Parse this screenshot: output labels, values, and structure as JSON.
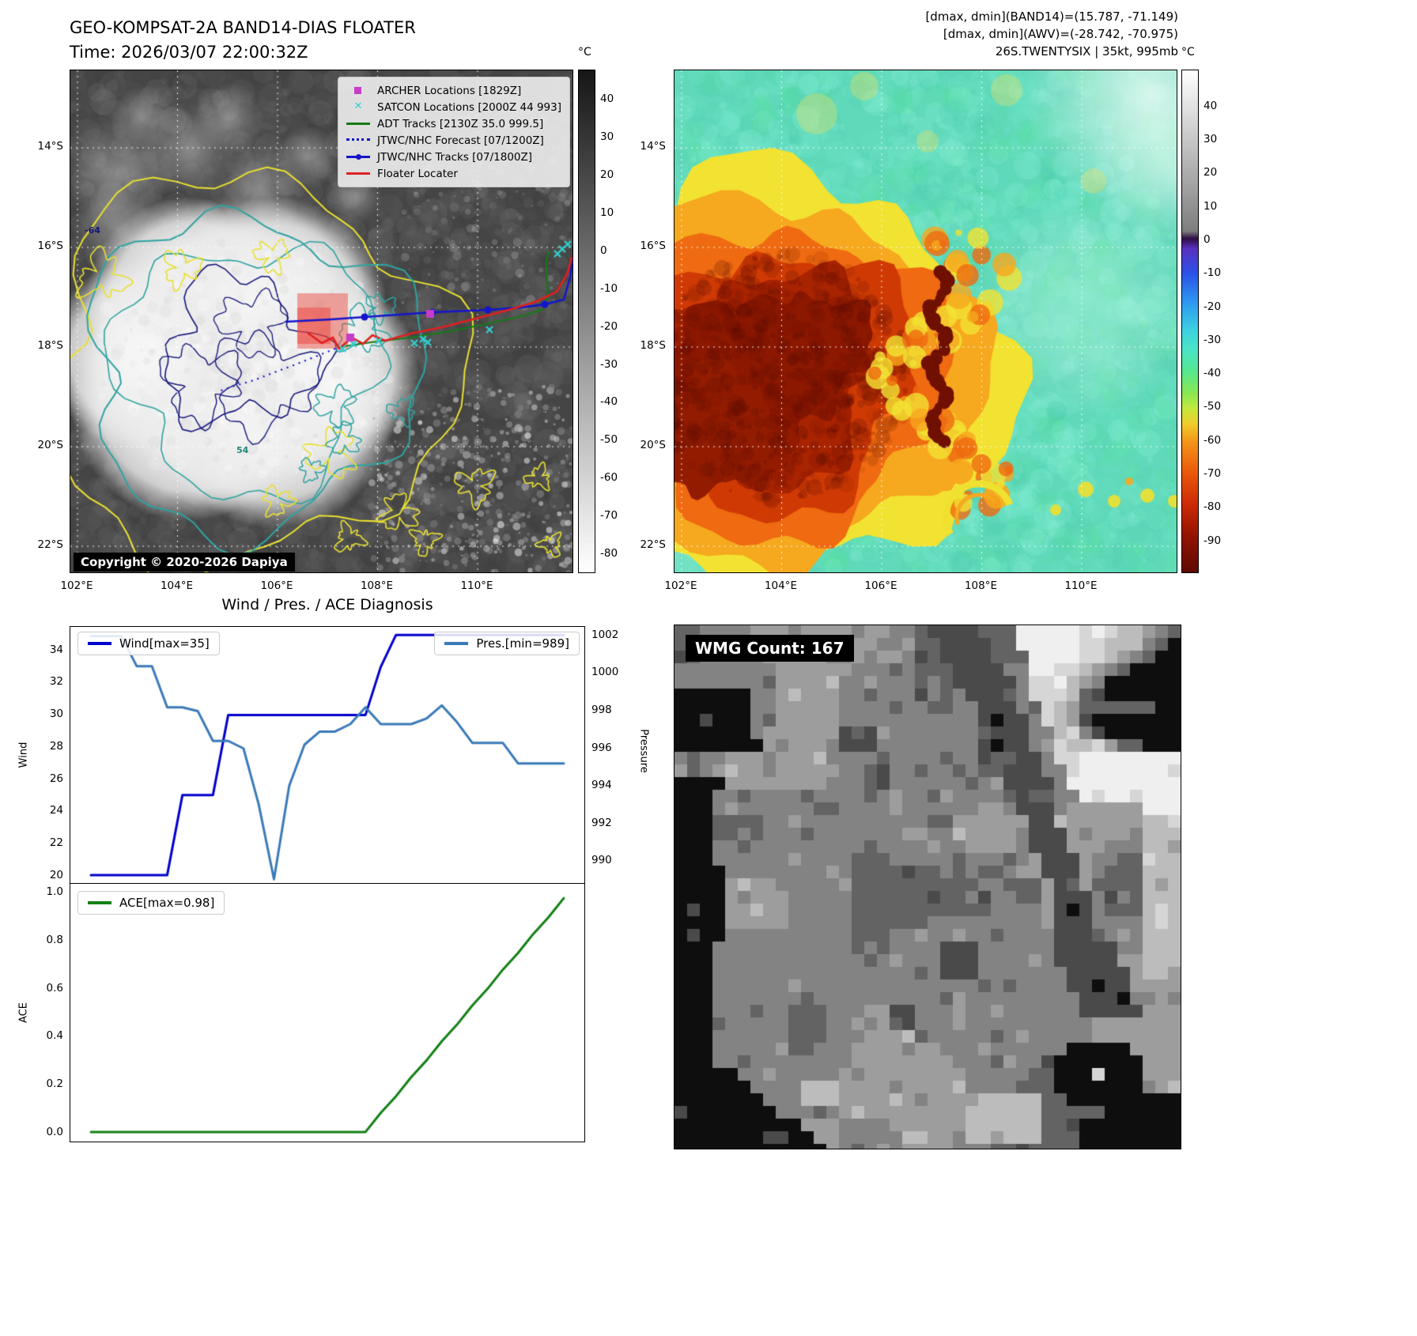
{
  "band14": {
    "title": "GEO-KOMPSAT-2A BAND14-DIAS FLOATER",
    "time_line": "Time: 2026/03/07 22:00:32Z",
    "copyright": "Copyright © 2020-2026 Dapiya",
    "colorbar_unit": "°C",
    "colorbar_ticks": [
      40,
      30,
      20,
      10,
      0,
      -10,
      -20,
      -30,
      -40,
      -50,
      -60,
      -70,
      -80
    ],
    "colorbar_stops": [
      [
        0,
        "#161616"
      ],
      [
        0.5,
        "#8a8a8a"
      ],
      [
        1,
        "#ffffff"
      ]
    ],
    "lat_ticks": [
      "14°S",
      "16°S",
      "18°S",
      "20°S",
      "22°S"
    ],
    "lon_ticks": [
      "102°E",
      "104°E",
      "106°E",
      "108°E",
      "110°E"
    ],
    "contour_labels": [
      "-64",
      "54"
    ],
    "legend": [
      {
        "label": "ARCHER Locations [1829Z]",
        "type": "square",
        "color": "#c83cc8"
      },
      {
        "label": "SATCON Locations [2000Z 44 993]",
        "type": "x",
        "color": "#35cccc"
      },
      {
        "label": "ADT Tracks [2130Z 35.0 999.5]",
        "type": "line",
        "color": "#157a15"
      },
      {
        "label": "JTWC/NHC Forecast [07/1200Z]",
        "type": "dotted",
        "color": "#1414cc"
      },
      {
        "label": "JTWC/NHC Tracks [07/1800Z]",
        "type": "line-marker",
        "color": "#1414cc"
      },
      {
        "label": "Floater Locater",
        "type": "line",
        "color": "#e02020"
      }
    ]
  },
  "awv": {
    "header_lines": [
      "[dmax, dmin](BAND14)=(15.787, -71.149)",
      "[dmax, dmin](AWV)=(-28.742, -70.975)",
      "26S.TWENTYSIX | 35kt, 995mb"
    ],
    "colorbar_unit": "°C",
    "colorbar_ticks": [
      40,
      30,
      20,
      10,
      0,
      -10,
      -20,
      -30,
      -40,
      -50,
      -60,
      -70,
      -80,
      -90
    ],
    "colorbar_stops": [
      [
        0,
        "#ffffff"
      ],
      [
        0.32,
        "#7e7e7e"
      ],
      [
        0.335,
        "#2e0e44"
      ],
      [
        0.355,
        "#5a30c0"
      ],
      [
        0.405,
        "#2a52e8"
      ],
      [
        0.465,
        "#2e9cf0"
      ],
      [
        0.52,
        "#3cd2e0"
      ],
      [
        0.555,
        "#4ae4c8"
      ],
      [
        0.6,
        "#55e88e"
      ],
      [
        0.645,
        "#8ce850"
      ],
      [
        0.675,
        "#c6e83c"
      ],
      [
        0.705,
        "#f0cc2a"
      ],
      [
        0.74,
        "#f49418"
      ],
      [
        0.8,
        "#ea5a0c"
      ],
      [
        0.865,
        "#cc2a06"
      ],
      [
        0.93,
        "#911300"
      ],
      [
        1,
        "#5e0a00"
      ]
    ],
    "lat_ticks": [
      "14°S",
      "16°S",
      "18°S",
      "20°S",
      "22°S"
    ],
    "lon_ticks": [
      "102°E",
      "104°E",
      "106°E",
      "108°E",
      "110°E"
    ]
  },
  "wmg": {
    "label": "WMG Count: 167"
  },
  "chart_data": [
    {
      "type": "line",
      "title": "Wind / Pres. / ACE Diagnosis",
      "xlabel": "",
      "x": [
        0,
        1,
        2,
        3,
        4,
        5,
        6,
        7,
        8,
        9,
        10,
        11,
        12,
        13,
        14,
        15,
        16,
        17,
        18,
        19,
        20,
        21,
        22,
        23,
        24,
        25,
        26,
        27,
        28,
        29,
        30,
        31
      ],
      "series": [
        {
          "name": "Wind[max=35]",
          "yaxis": "left",
          "color": "#0000cc",
          "values": [
            20,
            20,
            20,
            20,
            20,
            20,
            25,
            25,
            25,
            30,
            30,
            30,
            30,
            30,
            30,
            30,
            30,
            30,
            30,
            33,
            35,
            35,
            35,
            35,
            35,
            35,
            35,
            35,
            35,
            35,
            35,
            35
          ]
        },
        {
          "name": "Pres.[min=989]",
          "yaxis": "right",
          "color": "#3a7ab8",
          "values": [
            1002,
            1002,
            1002,
            1000.4,
            1000.4,
            998.2,
            998.2,
            998,
            996.4,
            996.4,
            996,
            993,
            989,
            994,
            996.2,
            996.9,
            996.9,
            997.3,
            998.2,
            997.3,
            997.3,
            997.3,
            997.6,
            998.3,
            997.4,
            996.3,
            996.3,
            996.3,
            995.2,
            995.2,
            995.2,
            995.2
          ]
        }
      ],
      "left_axis": {
        "label": "Wind",
        "ticks": [
          20,
          22,
          24,
          26,
          28,
          30,
          32,
          34
        ],
        "range": [
          19.5,
          35.5
        ]
      },
      "right_axis": {
        "label": "Pressure",
        "ticks": [
          990,
          992,
          994,
          996,
          998,
          1000,
          1002
        ],
        "range": [
          988.8,
          1002.5
        ]
      },
      "legend_position": "upper left / upper right",
      "grid": false
    },
    {
      "type": "line",
      "title": "",
      "xlabel": "",
      "x": [
        0,
        1,
        2,
        3,
        4,
        5,
        6,
        7,
        8,
        9,
        10,
        11,
        12,
        13,
        14,
        15,
        16,
        17,
        18,
        19,
        20,
        21,
        22,
        23,
        24,
        25,
        26,
        27,
        28,
        29,
        30,
        31
      ],
      "series": [
        {
          "name": "ACE[max=0.98]",
          "yaxis": "left",
          "color": "#138013",
          "values": [
            0,
            0,
            0,
            0,
            0,
            0,
            0,
            0,
            0,
            0,
            0,
            0,
            0,
            0,
            0,
            0,
            0,
            0,
            0,
            0.08,
            0.15,
            0.23,
            0.3,
            0.38,
            0.45,
            0.53,
            0.6,
            0.68,
            0.75,
            0.83,
            0.9,
            0.98
          ]
        }
      ],
      "left_axis": {
        "label": "ACE",
        "ticks": [
          "0.0",
          "0.2",
          "0.4",
          "0.6",
          "0.8",
          "1.0"
        ],
        "range": [
          -0.04,
          1.04
        ]
      },
      "legend_position": "upper left",
      "grid": false
    }
  ]
}
